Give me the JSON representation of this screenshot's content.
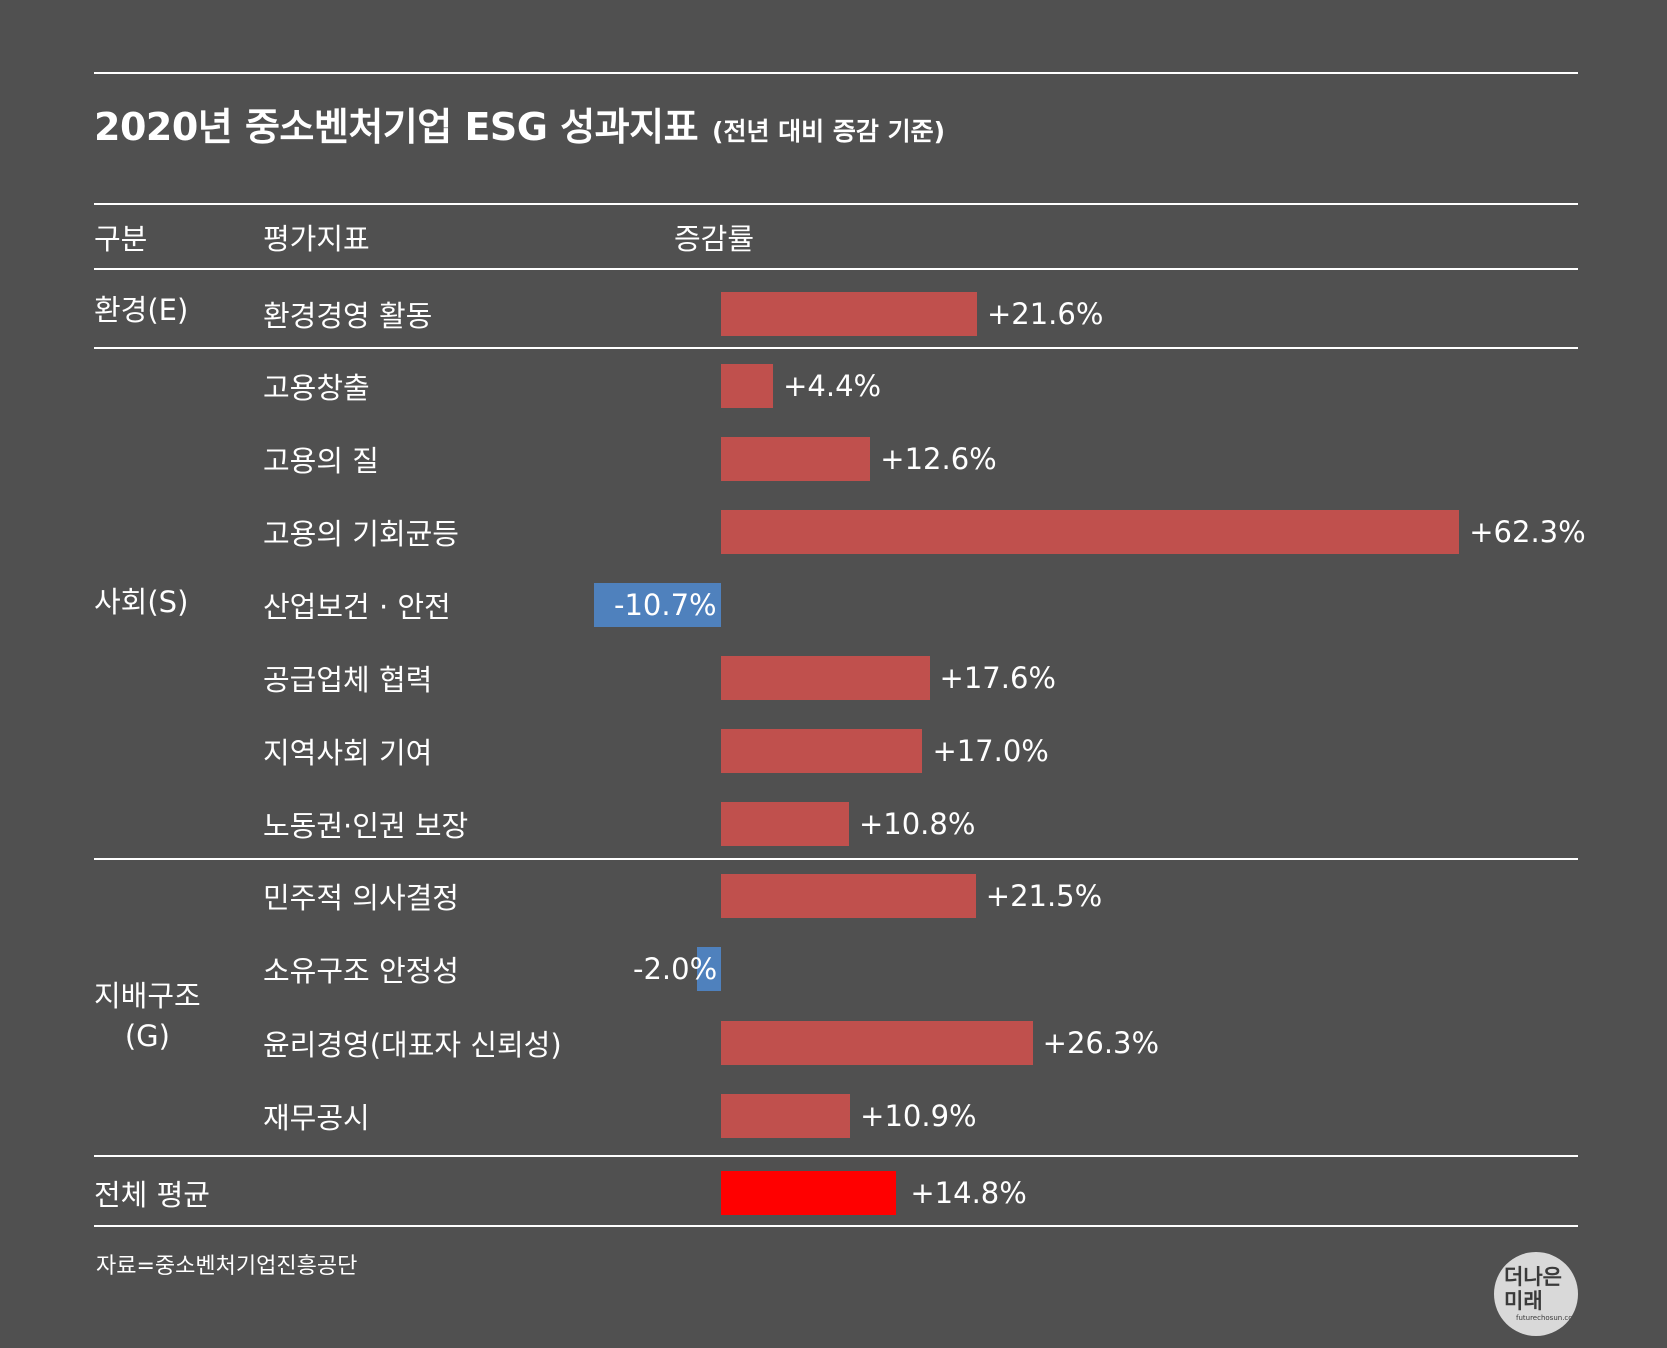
{
  "title": "2020년 중소벤처기업 ESG 성과지표",
  "subtitle": "(전년 대비 증감 기준)",
  "headers": {
    "category": "구분",
    "indicator": "평가지표",
    "rate": "증감률"
  },
  "chart_data": {
    "type": "bar",
    "orientation": "horizontal",
    "unit": "%",
    "groups": [
      {
        "label": "환경(E)",
        "items": [
          {
            "label": "환경경영 활동",
            "value": 21.6,
            "text": "+21.6%"
          }
        ]
      },
      {
        "label": "사회(S)",
        "items": [
          {
            "label": "고용창출",
            "value": 4.4,
            "text": "+4.4%"
          },
          {
            "label": "고용의 질",
            "value": 12.6,
            "text": "+12.6%"
          },
          {
            "label": "고용의 기회균등",
            "value": 62.3,
            "text": "+62.3%"
          },
          {
            "label": "산업보건 · 안전",
            "value": -10.7,
            "text": "-10.7%"
          },
          {
            "label": "공급업체 협력",
            "value": 17.6,
            "text": "+17.6%"
          },
          {
            "label": "지역사회 기여",
            "value": 17.0,
            "text": "+17.0%"
          },
          {
            "label": "노동권·인권 보장",
            "value": 10.8,
            "text": "+10.8%"
          }
        ]
      },
      {
        "label_lines": [
          "지배구조",
          "(G)"
        ],
        "items": [
          {
            "label": "민주적 의사결정",
            "value": 21.5,
            "text": "+21.5%"
          },
          {
            "label": "소유구조 안정성",
            "value": -2.0,
            "text": "-2.0%"
          },
          {
            "label": "윤리경영(대표자 신뢰성)",
            "value": 26.3,
            "text": "+26.3%"
          },
          {
            "label": "재무공시",
            "value": 10.9,
            "text": "+10.9%"
          }
        ]
      }
    ],
    "total": {
      "label": "전체 평균",
      "value": 14.8,
      "text": "+14.8%"
    },
    "colors": {
      "positive": "#c0504d",
      "negative": "#4f81bd",
      "total": "#ff0000"
    }
  },
  "source": "자료=중소벤처기업진흥공단",
  "logo": {
    "line1": "더나은",
    "line2": "미래",
    "line3": "futurechosun.com"
  }
}
